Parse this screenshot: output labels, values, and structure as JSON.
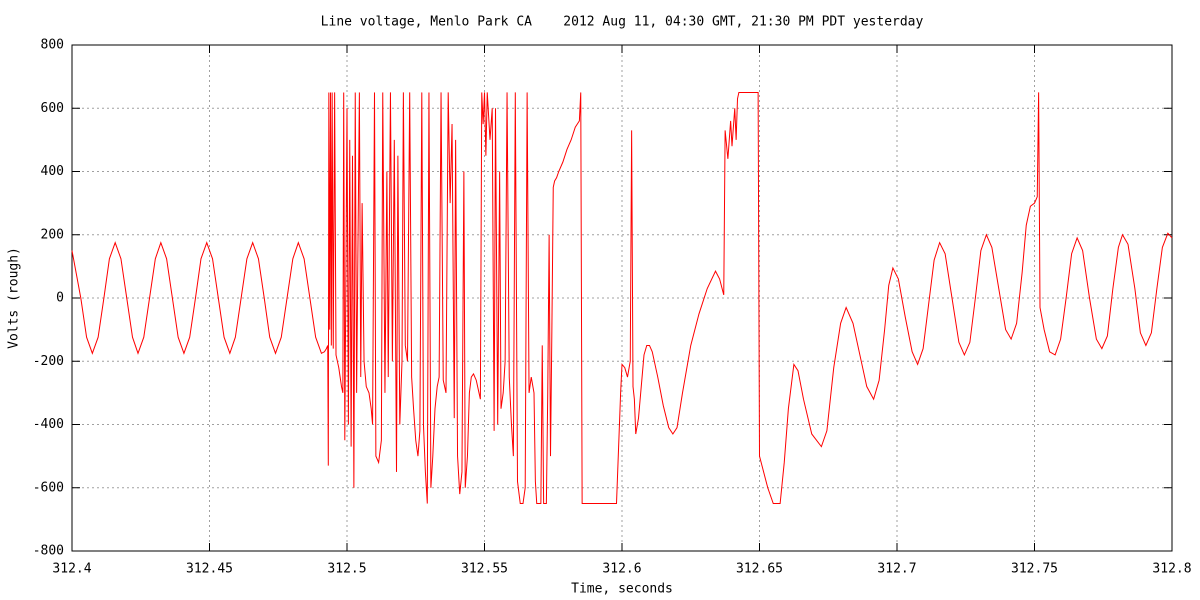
{
  "chart_data": {
    "type": "line",
    "title": "Line voltage, Menlo Park CA    2012 Aug 11, 04:30 GMT, 21:30 PM PDT yesterday",
    "xlabel": "Time, seconds",
    "ylabel": "Volts (rough)",
    "color": "#ff0000",
    "grid": true,
    "xlim": [
      312.4,
      312.8
    ],
    "xticks": [
      312.4,
      312.45,
      312.5,
      312.55,
      312.6,
      312.65,
      312.7,
      312.75,
      312.8
    ],
    "ylim": [
      -800,
      800
    ],
    "yticks": [
      -800,
      -600,
      -400,
      -200,
      0,
      200,
      400,
      600,
      800
    ],
    "x": [
      312.4,
      312.4032,
      312.4053,
      312.4074,
      312.4095,
      312.4116,
      312.4136,
      312.4157,
      312.4178,
      312.4199,
      312.422,
      312.424,
      312.4261,
      312.4282,
      312.4303,
      312.4323,
      312.4344,
      312.4365,
      312.4386,
      312.4407,
      312.4428,
      312.4449,
      312.4469,
      312.449,
      312.4511,
      312.4532,
      312.4553,
      312.4574,
      312.4594,
      312.4615,
      312.4636,
      312.4657,
      312.4678,
      312.4699,
      312.4719,
      312.474,
      312.4761,
      312.4782,
      312.4803,
      312.4823,
      312.4844,
      312.4865,
      312.4886,
      312.4907,
      312.4918,
      312.4925,
      312.493,
      312.4932,
      312.4934,
      312.4937,
      312.494,
      312.4943,
      312.4946,
      312.495,
      312.4955,
      312.496,
      312.497,
      312.498,
      312.4985,
      312.4988,
      312.4992,
      312.5,
      312.5005,
      312.501,
      312.5015,
      312.502,
      312.5025,
      312.503,
      312.5035,
      312.5045,
      312.505,
      312.5055,
      312.5062,
      312.507,
      312.508,
      312.5088,
      312.5093,
      312.51,
      312.5105,
      312.5115,
      312.5125,
      312.513,
      312.5138,
      312.5145,
      312.515,
      312.5158,
      312.5165,
      312.5172,
      312.518,
      312.5185,
      312.5192,
      312.52,
      312.5205,
      312.5212,
      312.522,
      312.5228,
      312.5235,
      312.5242,
      312.525,
      312.5258,
      312.5265,
      312.5272,
      312.5278,
      312.5285,
      312.5292,
      312.5298,
      312.5305,
      312.5312,
      312.532,
      312.5328,
      312.5335,
      312.5342,
      312.535,
      312.536,
      312.5368,
      312.5375,
      312.5382,
      312.539,
      312.5395,
      312.5402,
      312.541,
      312.5418,
      312.5425,
      312.543,
      312.5438,
      312.5445,
      312.5452,
      312.546,
      312.547,
      312.548,
      312.5485,
      312.549,
      312.5495,
      312.55,
      312.5505,
      312.551,
      312.552,
      312.5528,
      312.5535,
      312.554,
      312.5548,
      312.5555,
      312.556,
      312.5568,
      312.5575,
      312.5582,
      312.559,
      312.5598,
      312.5605,
      312.5612,
      312.562,
      312.563,
      312.564,
      312.5648,
      312.5655,
      312.5662,
      312.567,
      312.568,
      312.5685,
      312.569,
      312.5698,
      312.5705,
      312.571,
      312.5715,
      312.5725,
      312.573,
      312.5735,
      312.574,
      312.5745,
      312.575,
      312.5755,
      312.5762,
      312.577,
      312.5785,
      312.58,
      312.5815,
      312.583,
      312.5845,
      312.585,
      312.5855,
      312.598,
      312.5995,
      312.6,
      312.601,
      312.602,
      312.603,
      312.6035,
      312.604,
      312.6045,
      312.605,
      312.606,
      312.607,
      312.608,
      312.609,
      312.61,
      312.611,
      312.613,
      312.615,
      312.617,
      312.6185,
      312.62,
      312.622,
      312.625,
      312.628,
      312.631,
      312.634,
      312.6355,
      312.637,
      312.6375,
      312.6385,
      312.6395,
      312.64,
      312.641,
      312.6415,
      312.642,
      312.6425,
      312.6495,
      312.65,
      312.653,
      312.655,
      312.6575,
      312.659,
      312.6605,
      312.6625,
      312.664,
      312.666,
      312.669,
      312.6725,
      312.6745,
      312.677,
      312.6795,
      312.6815,
      312.684,
      312.6865,
      312.689,
      312.6915,
      312.6935,
      312.6955,
      312.697,
      312.6985,
      312.7005,
      312.703,
      312.7055,
      312.7075,
      312.7095,
      312.7115,
      312.7135,
      312.7155,
      312.7175,
      312.72,
      312.7225,
      312.7245,
      312.7265,
      312.7285,
      312.7305,
      312.7325,
      312.7345,
      312.737,
      312.7395,
      312.7415,
      312.7435,
      312.7455,
      312.747,
      312.7485,
      312.75,
      312.751,
      312.7515,
      312.752,
      312.7535,
      312.7555,
      312.7575,
      312.7595,
      312.7615,
      312.7635,
      312.7655,
      312.7675,
      312.77,
      312.7725,
      312.7745,
      312.7765,
      312.7785,
      312.7805,
      312.782,
      312.784,
      312.7865,
      312.7885,
      312.7905,
      312.7925,
      312.7945,
      312.7965,
      312.7985,
      312.8
    ],
    "values": [
      150,
      0,
      -124,
      -175,
      -124,
      0,
      124,
      175,
      124,
      0,
      -124,
      -175,
      -124,
      0,
      124,
      175,
      124,
      0,
      -124,
      -175,
      -124,
      0,
      124,
      175,
      124,
      0,
      -124,
      -175,
      -124,
      0,
      124,
      175,
      124,
      0,
      -124,
      -175,
      -124,
      0,
      124,
      175,
      124,
      0,
      -124,
      -175,
      -170,
      -160,
      -150,
      -530,
      650,
      -100,
      650,
      -150,
      650,
      -160,
      650,
      -180,
      -220,
      -280,
      -300,
      650,
      -450,
      600,
      -400,
      500,
      -470,
      450,
      -600,
      650,
      -300,
      650,
      -250,
      300,
      -200,
      -280,
      -300,
      -350,
      -400,
      650,
      -500,
      -520,
      -450,
      650,
      -300,
      400,
      -250,
      650,
      -200,
      500,
      -550,
      450,
      -400,
      -200,
      650,
      -150,
      -200,
      650,
      -250,
      -350,
      -450,
      -500,
      -420,
      650,
      -400,
      -550,
      -650,
      650,
      -600,
      -500,
      -350,
      -280,
      -250,
      650,
      -260,
      -300,
      650,
      300,
      550,
      -380,
      500,
      -500,
      -620,
      -550,
      400,
      -600,
      -500,
      -300,
      -250,
      -240,
      -260,
      -300,
      -320,
      650,
      550,
      650,
      450,
      650,
      500,
      600,
      -420,
      600,
      -400,
      400,
      -350,
      -300,
      -200,
      650,
      -250,
      -400,
      -500,
      650,
      -580,
      -650,
      -650,
      -600,
      650,
      -300,
      -250,
      -300,
      -580,
      -650,
      -650,
      -650,
      -150,
      -650,
      -650,
      -300,
      200,
      -500,
      -100,
      350,
      370,
      380,
      400,
      430,
      470,
      500,
      540,
      560,
      650,
      -650,
      -650,
      -300,
      -210,
      -220,
      -250,
      -200,
      530,
      -280,
      -320,
      -430,
      -380,
      -280,
      -180,
      -150,
      -150,
      -170,
      -250,
      -340,
      -410,
      -430,
      -410,
      -300,
      -150,
      -50,
      30,
      85,
      60,
      10,
      530,
      440,
      560,
      480,
      600,
      500,
      630,
      650,
      650,
      -500,
      -600,
      -650,
      -650,
      -520,
      -350,
      -210,
      -230,
      -320,
      -430,
      -470,
      -420,
      -220,
      -80,
      -30,
      -80,
      -180,
      -280,
      -320,
      -260,
      -100,
      40,
      95,
      60,
      -60,
      -170,
      -210,
      -160,
      -20,
      120,
      175,
      140,
      0,
      -140,
      -180,
      -140,
      0,
      150,
      200,
      160,
      30,
      -100,
      -130,
      -80,
      80,
      230,
      290,
      300,
      320,
      650,
      -30,
      -100,
      -170,
      -180,
      -130,
      0,
      140,
      190,
      150,
      0,
      -130,
      -160,
      -120,
      30,
      160,
      200,
      170,
      30,
      -110,
      -150,
      -110,
      30,
      160,
      205,
      190
    ]
  }
}
